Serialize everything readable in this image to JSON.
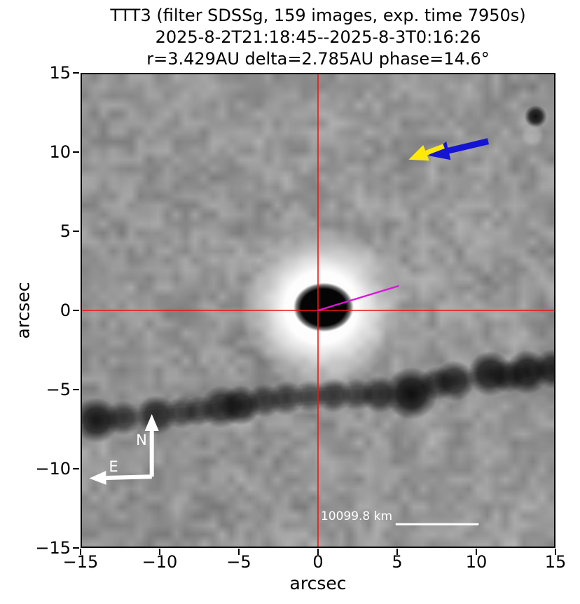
{
  "figure": {
    "title_lines": [
      "TTT3 (filter SDSSg, 159 images, exp. time 7950s)",
      "2025-8-2T21:18:45--2025-8-3T0:16:26",
      "r=3.429AU delta=2.785AU phase=14.6°"
    ]
  },
  "chart_data": {
    "type": "heatmap",
    "description": "Stacked grayscale astronomical image of comet/asteroid TTT3 field with annotation arrows, compass and scale bar",
    "title": "TTT3 (filter SDSSg, 159 images, exp. time 7950s)",
    "subtitle": "2025-8-2T21:18:45--2025-8-3T0:16:26",
    "subtitle2": "r=3.429AU delta=2.785AU phase=14.6°",
    "xlabel": "arcsec",
    "ylabel": "arcsec",
    "xlim": [
      -15,
      15
    ],
    "ylim": [
      -15,
      15
    ],
    "grid": false,
    "x_ticks": {
      "values": [
        -15,
        -10,
        -5,
        0,
        5,
        10,
        15
      ],
      "labels": [
        "−15",
        "−10",
        "−5",
        "0",
        "5",
        "10",
        "15"
      ]
    },
    "y_ticks": {
      "values": [
        15,
        10,
        5,
        0,
        -5,
        -10,
        -15
      ],
      "labels": [
        "15",
        "10",
        "5",
        "0",
        "−5",
        "−10",
        "−15"
      ]
    },
    "image_content": {
      "background_mean_gray": "#969696",
      "target": {
        "x": 0.2,
        "y": 0.2,
        "nucleus_rx_arcsec": 1.9,
        "nucleus_ry_arcsec": 1.55,
        "halo_r_arcsec": 5.1
      },
      "field_star": {
        "x": 13.75,
        "y": 12.25
      },
      "star_trail": {
        "comment": "trailed background stars, dark blobs [x_arcsec, y_arcsec, radius_arcsec, opacity]",
        "blobs": [
          [
            -14.0,
            -6.95,
            0.8,
            0.85
          ],
          [
            -12.3,
            -6.8,
            0.62,
            0.6
          ],
          [
            -10.2,
            -6.6,
            0.7,
            0.7
          ],
          [
            -8.6,
            -6.45,
            0.58,
            0.55
          ],
          [
            -7.5,
            -6.35,
            0.55,
            0.5
          ],
          [
            -6.1,
            -6.1,
            0.75,
            0.75
          ],
          [
            -4.9,
            -6.0,
            0.7,
            0.8
          ],
          [
            -3.4,
            -5.7,
            0.6,
            0.55
          ],
          [
            -2.0,
            -5.55,
            0.62,
            0.6
          ],
          [
            -0.5,
            -5.42,
            0.58,
            0.5
          ],
          [
            1.0,
            -5.35,
            0.62,
            0.6
          ],
          [
            2.5,
            -5.3,
            0.58,
            0.55
          ],
          [
            3.9,
            -5.3,
            0.66,
            0.7
          ],
          [
            5.9,
            -5.25,
            0.92,
            0.95
          ],
          [
            7.5,
            -4.6,
            0.6,
            0.6
          ],
          [
            8.6,
            -4.45,
            0.72,
            0.75
          ],
          [
            10.9,
            -4.0,
            0.8,
            0.85
          ],
          [
            12.0,
            -4.15,
            0.6,
            0.6
          ],
          [
            13.2,
            -3.9,
            0.78,
            0.88
          ],
          [
            14.8,
            -3.7,
            0.7,
            0.8
          ]
        ]
      }
    },
    "annotations": {
      "crosshair": {
        "color": "#ee1515",
        "x": 0,
        "y": 0
      },
      "jet_line": {
        "color": "#d916d9",
        "from": [
          0,
          0
        ],
        "to": [
          5.1,
          1.55
        ]
      },
      "arrows": [
        {
          "id": "blue-arrow",
          "color": "#1414d2",
          "tail": [
            10.75,
            10.68
          ],
          "tip": [
            6.95,
            9.78
          ],
          "shaft_w": 9,
          "head_l": 30,
          "head_w": 27
        },
        {
          "id": "yellow-arrow",
          "color": "#ffe80a",
          "tail": [
            7.95,
            10.37
          ],
          "tip": [
            5.72,
            9.52
          ],
          "shaft_w": 7,
          "head_l": 27,
          "head_w": 24
        }
      ],
      "compass": {
        "color": "#ffffff",
        "origin": [
          -10.5,
          -10.5
        ],
        "north_tip": [
          -10.5,
          -6.55
        ],
        "east_tip": [
          -14.45,
          -10.6
        ],
        "north_label": "N",
        "east_label": "E",
        "shaft_w": 6,
        "head_l": 24,
        "head_w": 20
      },
      "scale_bar": {
        "label": "10099.8 km",
        "x_from": 4.9,
        "x_to": 10.15,
        "y": -13.5,
        "color": "#ffffff"
      }
    }
  }
}
